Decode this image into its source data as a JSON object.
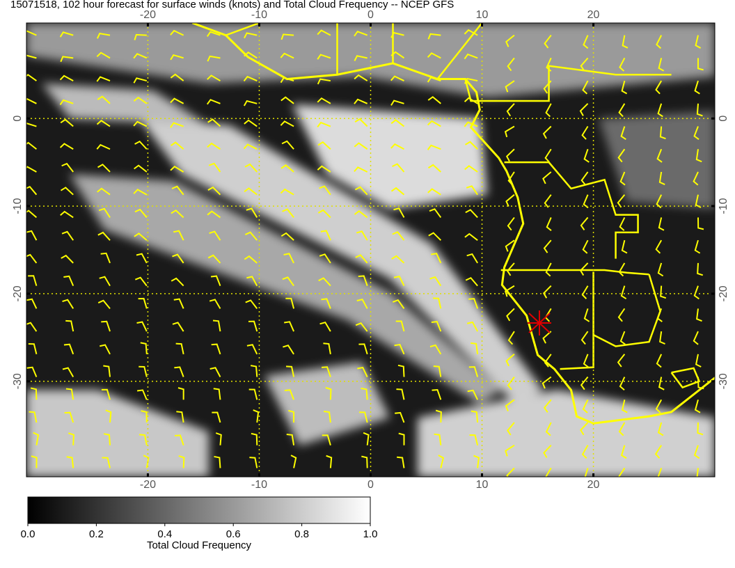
{
  "title": "15071518, 102 hour forecast for surface winds (knots) and Total Cloud Frequency -- NCEP GFS",
  "map": {
    "xlim": [
      -30.9,
      30.9
    ],
    "ylim": [
      -40.9,
      10.9
    ],
    "xticks": [
      -20,
      -10,
      0,
      10,
      20
    ],
    "yticks": [
      0,
      -10,
      -20,
      -30
    ]
  },
  "colorbar": {
    "lim": [
      0,
      1
    ],
    "ticks": [
      {
        "value": 0,
        "label": "0.0"
      },
      {
        "value": 0.2,
        "label": "0.2"
      },
      {
        "value": 0.4,
        "label": "0.4"
      },
      {
        "value": 0.6,
        "label": "0.6"
      },
      {
        "value": 0.8,
        "label": "0.8"
      },
      {
        "value": 1,
        "label": "1.0"
      }
    ],
    "label": "Total Cloud Frequency"
  }
}
